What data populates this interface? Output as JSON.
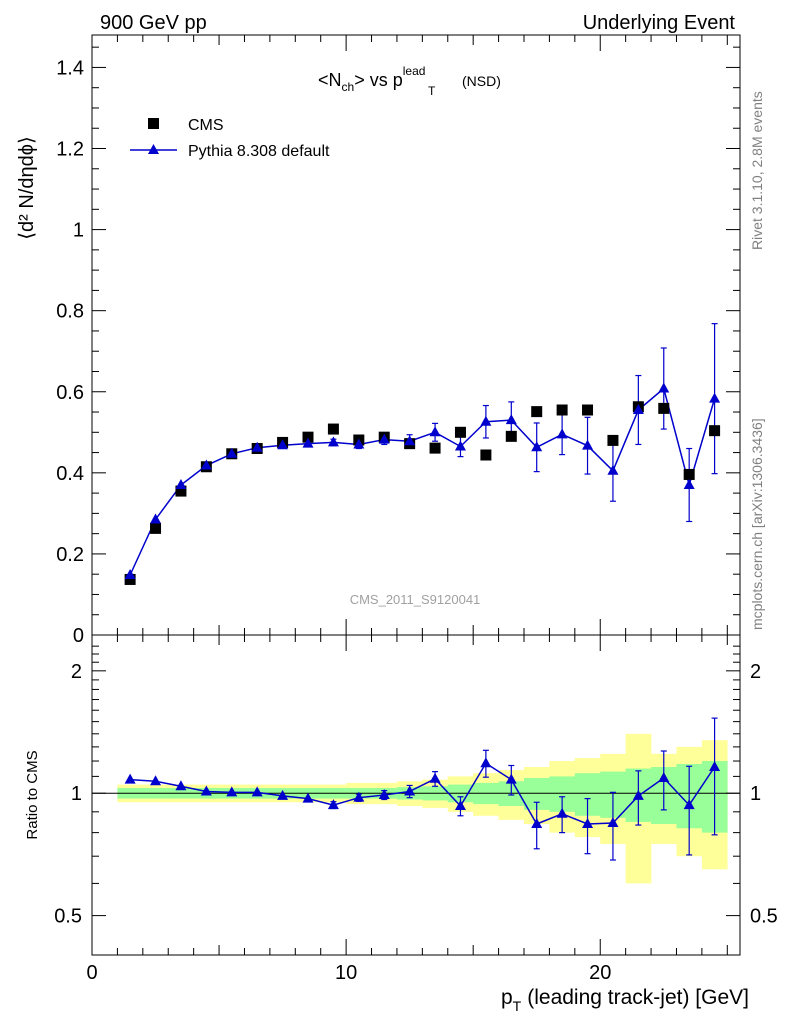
{
  "header": {
    "left": "900 GeV pp",
    "right": "Underlying Event"
  },
  "side_labels": {
    "rivet": "Rivet 3.1.10,  2.8M events",
    "mcplots": "mcplots.cern.ch [arXiv:1306.3436]"
  },
  "chart_data": [
    {
      "type": "scatter",
      "title_parts": {
        "a": "<N",
        "a_sub": "ch",
        "b": "> vs p",
        "b_sup": "lead",
        "b_sub": "T",
        "c": "(NSD)"
      },
      "ylabel": "⟨d² N/dηdϕ⟩",
      "ylim": [
        0,
        1.48
      ],
      "yticks": [
        0,
        0.2,
        0.4,
        0.6,
        0.8,
        1,
        1.2,
        1.4
      ],
      "ytick_labels": [
        "0",
        "0.2",
        "0.4",
        "0.6",
        "0.8",
        "1",
        "1.2",
        "1.4"
      ],
      "xlim": [
        0,
        25.5
      ],
      "watermark": "CMS_2011_S9120041",
      "legend_position": "top-left",
      "series": [
        {
          "name": "CMS",
          "marker": "square",
          "color": "#000000",
          "x": [
            1.5,
            2.5,
            3.5,
            4.5,
            5.5,
            6.5,
            7.5,
            8.5,
            9.5,
            10.5,
            11.5,
            12.5,
            13.5,
            14.5,
            15.5,
            16.5,
            17.5,
            18.5,
            19.5,
            20.5,
            21.5,
            22.5,
            23.5,
            24.5
          ],
          "y": [
            0.137,
            0.263,
            0.355,
            0.415,
            0.447,
            0.46,
            0.475,
            0.488,
            0.508,
            0.481,
            0.488,
            0.472,
            0.461,
            0.5,
            0.444,
            0.49,
            0.551,
            0.555,
            0.555,
            0.48,
            0.563,
            0.559,
            0.396,
            0.504
          ]
        },
        {
          "name": "Pythia 8.308 default",
          "marker": "triangle",
          "color": "#0000cc",
          "x": [
            1.5,
            2.5,
            3.5,
            4.5,
            5.5,
            6.5,
            7.5,
            8.5,
            9.5,
            10.5,
            11.5,
            12.5,
            13.5,
            14.5,
            15.5,
            16.5,
            17.5,
            18.5,
            19.5,
            20.5,
            21.5,
            22.5,
            23.5,
            24.5
          ],
          "y": [
            0.148,
            0.285,
            0.37,
            0.418,
            0.447,
            0.462,
            0.468,
            0.472,
            0.475,
            0.47,
            0.482,
            0.478,
            0.5,
            0.465,
            0.526,
            0.53,
            0.463,
            0.495,
            0.467,
            0.405,
            0.555,
            0.608,
            0.37,
            0.583
          ],
          "err": [
            0.004,
            0.004,
            0.004,
            0.004,
            0.004,
            0.005,
            0.006,
            0.007,
            0.008,
            0.01,
            0.012,
            0.016,
            0.022,
            0.025,
            0.04,
            0.045,
            0.06,
            0.05,
            0.07,
            0.075,
            0.085,
            0.1,
            0.09,
            0.185
          ]
        }
      ]
    },
    {
      "type": "scatter",
      "ylabel": "Ratio to CMS",
      "ylim": [
        0.4,
        2.45
      ],
      "yticks": [
        0.5,
        1,
        2
      ],
      "ytick_labels": [
        "0.5",
        "1",
        "2"
      ],
      "xlim": [
        0,
        25.5
      ],
      "xticks": [
        0,
        10,
        20
      ],
      "xtick_labels": [
        "0",
        "10",
        "20"
      ],
      "xlabel_parts": {
        "p": "p",
        "sub": "T",
        "rest": "(leading track-jet) [GeV]"
      },
      "band_edges": [
        1,
        2,
        3,
        4,
        5,
        6,
        7,
        8,
        9,
        10,
        11,
        12,
        13,
        14,
        15,
        16,
        17,
        18,
        19,
        20,
        21,
        22,
        23,
        24,
        25
      ],
      "band_inner": [
        0.03,
        0.03,
        0.03,
        0.03,
        0.03,
        0.03,
        0.03,
        0.03,
        0.03,
        0.03,
        0.03,
        0.035,
        0.04,
        0.05,
        0.06,
        0.07,
        0.09,
        0.1,
        0.12,
        0.13,
        0.15,
        0.16,
        0.18,
        0.2
      ],
      "band_outer": [
        0.05,
        0.05,
        0.05,
        0.05,
        0.05,
        0.05,
        0.05,
        0.05,
        0.05,
        0.06,
        0.06,
        0.07,
        0.08,
        0.1,
        0.12,
        0.14,
        0.16,
        0.2,
        0.22,
        0.25,
        0.4,
        0.25,
        0.3,
        0.35
      ],
      "band_colors": {
        "inner": "#99ff99",
        "outer": "#ffff99"
      },
      "series": [
        {
          "name": "Pythia 8.308 default",
          "marker": "triangle",
          "color": "#0000cc",
          "x": [
            1.5,
            2.5,
            3.5,
            4.5,
            5.5,
            6.5,
            7.5,
            8.5,
            9.5,
            10.5,
            11.5,
            12.5,
            13.5,
            14.5,
            15.5,
            16.5,
            17.5,
            18.5,
            19.5,
            20.5,
            21.5,
            22.5,
            23.5,
            24.5
          ],
          "y": [
            1.08,
            1.07,
            1.04,
            1.01,
            1.005,
            1.005,
            0.985,
            0.97,
            0.935,
            0.975,
            0.99,
            1.01,
            1.085,
            0.93,
            1.185,
            1.08,
            0.84,
            0.89,
            0.84,
            0.845,
            0.985,
            1.09,
            0.935,
            1.16
          ],
          "err": [
            0.01,
            0.01,
            0.01,
            0.01,
            0.01,
            0.012,
            0.014,
            0.016,
            0.018,
            0.02,
            0.025,
            0.035,
            0.045,
            0.05,
            0.09,
            0.09,
            0.11,
            0.09,
            0.13,
            0.16,
            0.15,
            0.18,
            0.23,
            0.37
          ]
        }
      ]
    }
  ]
}
